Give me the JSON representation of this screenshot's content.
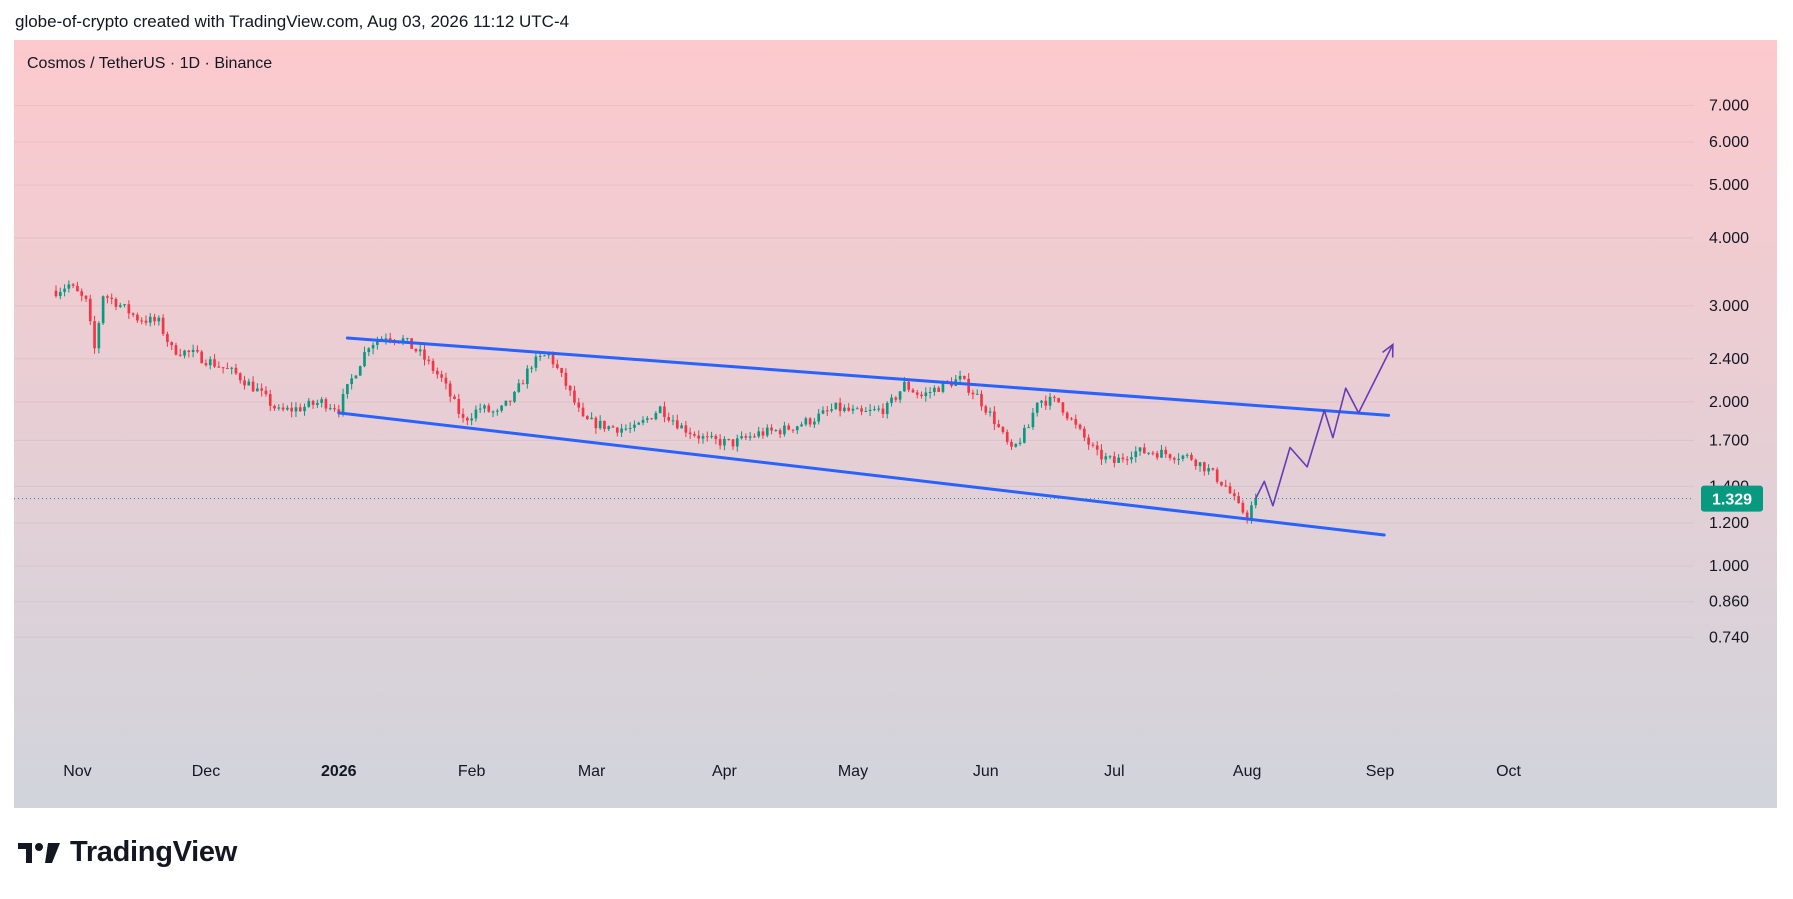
{
  "header": {
    "text": "globe-of-crypto created with TradingView.com, Aug 03, 2026 11:12 UTC-4"
  },
  "symbol": {
    "label": "Cosmos / TetherUS · 1D · Binance"
  },
  "brand": {
    "name": "TradingView"
  },
  "colors": {
    "up": "#089981",
    "down": "#f23645",
    "channel": "#2962ff",
    "projection": "#673ab7",
    "price_badge": "#089981",
    "bg_top": "#fcc9cd",
    "bg_bottom": "#d1d4dc"
  },
  "chart_data": {
    "type": "candlestick",
    "scale": "log",
    "interval": "1D",
    "y_ticks": [
      "7.000",
      "6.000",
      "5.000",
      "4.000",
      "3.000",
      "2.400",
      "2.000",
      "1.700",
      "1.400",
      "1.200",
      "1.000",
      "0.860",
      "0.740"
    ],
    "x_ticks": [
      {
        "label": "Nov",
        "bold": false
      },
      {
        "label": "Dec",
        "bold": false
      },
      {
        "label": "2026",
        "bold": true
      },
      {
        "label": "Feb",
        "bold": false
      },
      {
        "label": "Mar",
        "bold": false
      },
      {
        "label": "Apr",
        "bold": false
      },
      {
        "label": "May",
        "bold": false
      },
      {
        "label": "Jun",
        "bold": false
      },
      {
        "label": "Jul",
        "bold": false
      },
      {
        "label": "Aug",
        "bold": false
      },
      {
        "label": "Sep",
        "bold": false
      },
      {
        "label": "Oct",
        "bold": false
      }
    ],
    "last_price": "1.329",
    "price_path": [
      [
        "2025-10-27",
        3.2
      ],
      [
        "2025-10-30",
        3.28
      ],
      [
        "2025-11-03",
        3.05
      ],
      [
        "2025-11-05",
        2.5
      ],
      [
        "2025-11-07",
        3.15
      ],
      [
        "2025-11-10",
        3.05
      ],
      [
        "2025-11-15",
        2.85
      ],
      [
        "2025-11-20",
        2.8
      ],
      [
        "2025-11-23",
        2.5
      ],
      [
        "2025-11-28",
        2.45
      ],
      [
        "2025-12-03",
        2.35
      ],
      [
        "2025-12-08",
        2.25
      ],
      [
        "2025-12-13",
        2.1
      ],
      [
        "2025-12-18",
        1.92
      ],
      [
        "2025-12-23",
        1.95
      ],
      [
        "2025-12-28",
        2.0
      ],
      [
        "2026-01-01",
        1.95
      ],
      [
        "2026-01-04",
        2.2
      ],
      [
        "2026-01-08",
        2.55
      ],
      [
        "2026-01-12",
        2.65
      ],
      [
        "2026-01-16",
        2.6
      ],
      [
        "2026-01-20",
        2.45
      ],
      [
        "2026-01-25",
        2.2
      ],
      [
        "2026-01-30",
        1.85
      ],
      [
        "2026-02-03",
        1.95
      ],
      [
        "2026-02-07",
        1.9
      ],
      [
        "2026-02-11",
        2.05
      ],
      [
        "2026-02-15",
        2.35
      ],
      [
        "2026-02-19",
        2.45
      ],
      [
        "2026-02-23",
        2.15
      ],
      [
        "2026-02-27",
        1.85
      ],
      [
        "2026-03-05",
        1.8
      ],
      [
        "2026-03-11",
        1.78
      ],
      [
        "2026-03-17",
        1.95
      ],
      [
        "2026-03-22",
        1.8
      ],
      [
        "2026-03-28",
        1.7
      ],
      [
        "2026-04-03",
        1.68
      ],
      [
        "2026-04-09",
        1.75
      ],
      [
        "2026-04-15",
        1.78
      ],
      [
        "2026-04-21",
        1.85
      ],
      [
        "2026-04-27",
        1.95
      ],
      [
        "2026-05-03",
        1.9
      ],
      [
        "2026-05-09",
        1.95
      ],
      [
        "2026-05-13",
        2.15
      ],
      [
        "2026-05-17",
        2.05
      ],
      [
        "2026-05-22",
        2.15
      ],
      [
        "2026-05-26",
        2.2
      ],
      [
        "2026-05-30",
        2.05
      ],
      [
        "2026-06-03",
        1.85
      ],
      [
        "2026-06-07",
        1.62
      ],
      [
        "2026-06-11",
        1.8
      ],
      [
        "2026-06-13",
        2.02
      ],
      [
        "2026-06-18",
        2.0
      ],
      [
        "2026-06-22",
        1.8
      ],
      [
        "2026-06-27",
        1.6
      ],
      [
        "2026-07-01",
        1.55
      ],
      [
        "2026-07-05",
        1.62
      ],
      [
        "2026-07-10",
        1.62
      ],
      [
        "2026-07-15",
        1.6
      ],
      [
        "2026-07-19",
        1.58
      ],
      [
        "2026-07-23",
        1.5
      ],
      [
        "2026-07-27",
        1.4
      ],
      [
        "2026-07-30",
        1.28
      ],
      [
        "2026-08-01",
        1.24
      ],
      [
        "2026-08-03",
        1.33
      ]
    ],
    "channel_upper": [
      [
        "2026-01-03",
        2.62
      ],
      [
        "2026-09-03",
        1.89
      ]
    ],
    "channel_lower": [
      [
        "2026-01-01",
        1.91
      ],
      [
        "2026-09-02",
        1.14
      ]
    ],
    "projection": [
      [
        "2026-08-03",
        1.33
      ],
      [
        "2026-08-05",
        1.43
      ],
      [
        "2026-08-07",
        1.29
      ],
      [
        "2026-08-11",
        1.65
      ],
      [
        "2026-08-15",
        1.52
      ],
      [
        "2026-08-19",
        1.93
      ],
      [
        "2026-08-21",
        1.72
      ],
      [
        "2026-08-24",
        2.12
      ],
      [
        "2026-08-27",
        1.91
      ],
      [
        "2026-09-04",
        2.55
      ]
    ]
  }
}
